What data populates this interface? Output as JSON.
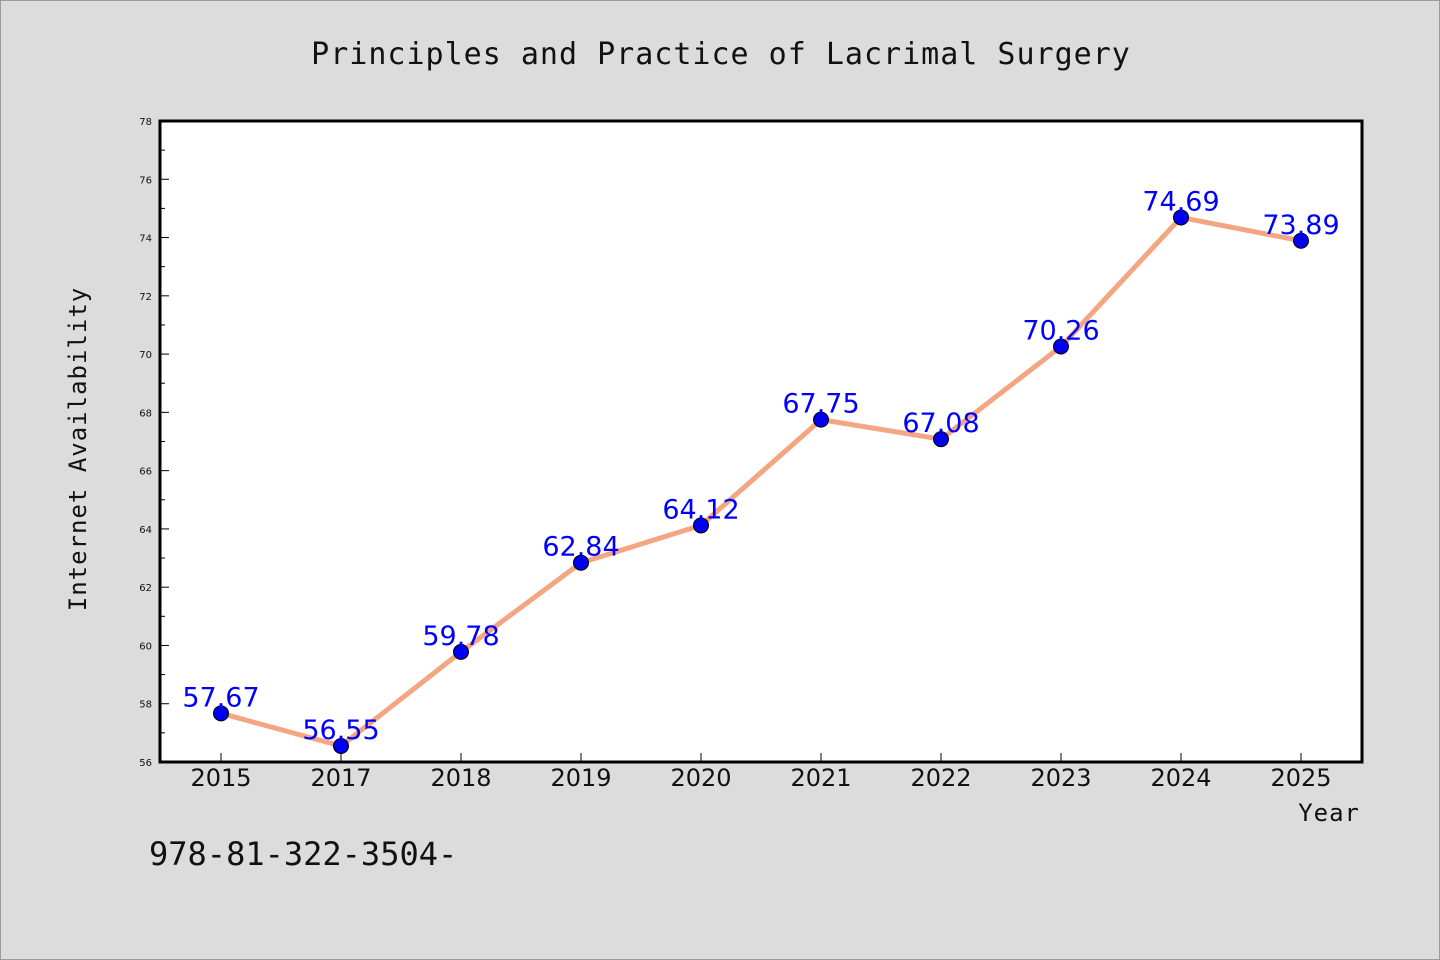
{
  "chart_data": {
    "type": "line",
    "title": "Principles and Practice of Lacrimal Surgery",
    "xlabel": "Year",
    "ylabel": "Internet Availability",
    "categories": [
      "2015",
      "2017",
      "2018",
      "2019",
      "2020",
      "2021",
      "2022",
      "2023",
      "2024",
      "2025"
    ],
    "series": [
      {
        "values": [
          57.67,
          56.55,
          59.78,
          62.84,
          64.12,
          67.75,
          67.08,
          70.26,
          74.69,
          73.89
        ]
      }
    ],
    "data_labels": [
      "57.67",
      "56.55",
      "59.78",
      "62.84",
      "64.12",
      "67.75",
      "67.08",
      "70.26",
      "74.69",
      "73.89"
    ],
    "ylim": [
      56,
      78
    ],
    "yticks": [
      "56",
      "58",
      "60",
      "62",
      "64",
      "66",
      "68",
      "70",
      "72",
      "74",
      "76",
      "78"
    ],
    "grid": false,
    "legend": "none",
    "colors": {
      "line": "#f4a582",
      "marker": "#0000ee",
      "label": "#0000ff",
      "background": "#dcdcdc",
      "plot_area": "#ffffff"
    }
  },
  "footer": {
    "isbn": "978-81-322-3504-"
  }
}
